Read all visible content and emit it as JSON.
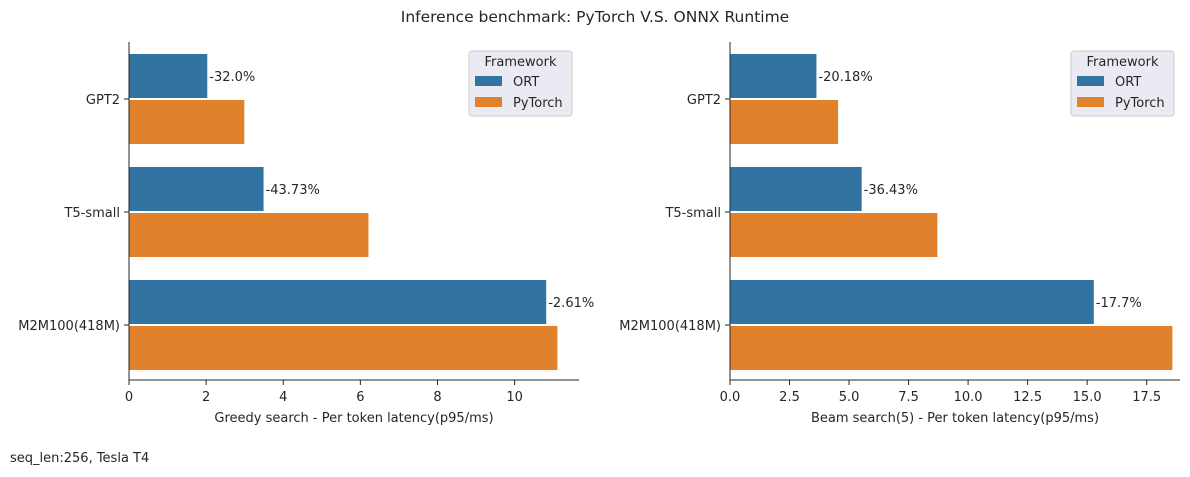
{
  "title": "Inference benchmark: PyTorch V.S. ONNX Runtime",
  "footnote": "seq_len:256, Tesla T4",
  "colors": {
    "ORT": "#3274a1",
    "PyTorch": "#e1812c",
    "legend_bg": "#eaeaf2"
  },
  "chart_data": [
    {
      "type": "bar",
      "orientation": "horizontal",
      "categories": [
        "GPT2",
        "T5-small",
        "M2M100(418M)"
      ],
      "series": [
        {
          "name": "ORT",
          "values": [
            2.03,
            3.49,
            10.82
          ]
        },
        {
          "name": "PyTorch",
          "values": [
            2.99,
            6.21,
            11.11
          ]
        }
      ],
      "annotations": [
        "-32.0%",
        "-43.73%",
        "-2.61%"
      ],
      "xlabel": "Greedy search - Per token latency(p95/ms)",
      "ylabel": "",
      "xlim": [
        0,
        11.67
      ],
      "xticks": [
        0,
        2,
        4,
        6,
        8,
        10
      ],
      "xtick_labels": [
        "0",
        "2",
        "4",
        "6",
        "8",
        "10"
      ],
      "legend": {
        "title": "Framework",
        "position": "upper right"
      },
      "grid": false
    },
    {
      "type": "bar",
      "orientation": "horizontal",
      "categories": [
        "GPT2",
        "T5-small",
        "M2M100(418M)"
      ],
      "series": [
        {
          "name": "ORT",
          "values": [
            3.63,
            5.53,
            15.28
          ]
        },
        {
          "name": "PyTorch",
          "values": [
            4.54,
            8.71,
            18.58
          ]
        }
      ],
      "annotations": [
        "-20.18%",
        "-36.43%",
        "-17.7%"
      ],
      "xlabel": "Beam search(5) - Per token latency(p95/ms)",
      "ylabel": "",
      "xlim": [
        0,
        18.9
      ],
      "xticks": [
        0,
        2.5,
        5,
        7.5,
        10,
        12.5,
        15,
        17.5
      ],
      "xtick_labels": [
        "0.0",
        "2.5",
        "5.0",
        "7.5",
        "10.0",
        "12.5",
        "15.0",
        "17.5"
      ],
      "legend": {
        "title": "Framework",
        "position": "upper right"
      },
      "grid": false
    }
  ]
}
